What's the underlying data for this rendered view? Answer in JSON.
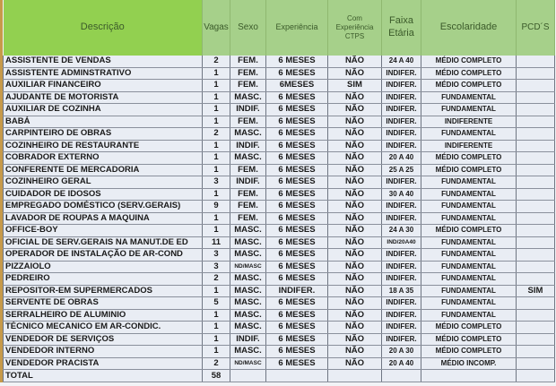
{
  "headers": {
    "descricao": "Descrição",
    "vagas": "Vagas",
    "sexo": "Sexo",
    "experiencia": "Experiência",
    "ctps": "Com Experiência CTPS",
    "faixa": "Faixa Etária",
    "escolaridade": "Escolaridade",
    "pcd": "PCD´S"
  },
  "rows": [
    [
      "ASSISTENTE DE VENDAS",
      "2",
      "FEM.",
      "6 MESES",
      "NÃO",
      "24 A 40",
      "MÉDIO COMPLETO",
      ""
    ],
    [
      "ASSISTENTE ADMINSTRATIVO",
      "1",
      "FEM.",
      "6 MESES",
      "NÃO",
      "INDIFER.",
      "MÉDIO COMPLETO",
      ""
    ],
    [
      "AUXILIAR FINANCEIRO",
      "1",
      "FEM.",
      "6MESES",
      "SIM",
      "INDIFER.",
      "MÉDIO COMPLETO",
      ""
    ],
    [
      "AJUDANTE DE MOTORISTA",
      "1",
      "MASC.",
      "6 MESES",
      "NÃO",
      "INDIFER.",
      "FUNDAMENTAL",
      ""
    ],
    [
      "AUXILIAR DE COZINHA",
      "1",
      "INDIF.",
      "6 MESES",
      "NÃO",
      "INDIFER.",
      "FUNDAMENTAL",
      ""
    ],
    [
      "BABÁ",
      "1",
      "FEM.",
      "6 MESES",
      "NÃO",
      "INDIFER.",
      "INDIFERENTE",
      ""
    ],
    [
      "CARPINTEIRO DE OBRAS",
      "2",
      "MASC.",
      "6 MESES",
      "NÃO",
      "INDIFER.",
      "FUNDAMENTAL",
      ""
    ],
    [
      "COZINHEIRO DE RESTAURANTE",
      "1",
      "INDIF.",
      "6 MESES",
      "NÃO",
      "INDIFER.",
      "INDIFERENTE",
      ""
    ],
    [
      "COBRADOR EXTERNO",
      "1",
      "MASC.",
      "6 MESES",
      "NÃO",
      "20 A 40",
      "MÉDIO COMPLETO",
      ""
    ],
    [
      "CONFERENTE DE MERCADORIA",
      "1",
      "FEM.",
      "6 MESES",
      "NÃO",
      "25 A 25",
      "MÉDIO COMPLETO",
      ""
    ],
    [
      "COZINHEIRO GERAL",
      "3",
      "INDIF.",
      "6 MESES",
      "NÃO",
      "INDIFER.",
      "FUNDAMENTAL",
      ""
    ],
    [
      "CUIDADOR DE IDOSOS",
      "1",
      "FEM.",
      "6 MESES",
      "NÃO",
      "30 A 40",
      "FUNDAMENTAL",
      ""
    ],
    [
      "EMPREGADO DOMÉSTICO (SERV.GERAIS)",
      "9",
      "FEM.",
      "6 MESES",
      "NÃO",
      "INDIFER.",
      "FUNDAMENTAL",
      ""
    ],
    [
      "LAVADOR DE ROUPAS A MAQUINA",
      "1",
      "FEM.",
      "6 MESES",
      "NÃO",
      "INDIFER.",
      "FUNDAMENTAL",
      ""
    ],
    [
      "OFFICE-BOY",
      "1",
      "MASC.",
      "6 MESES",
      "NÃO",
      "24 A 30",
      "MÉDIO COMPLETO",
      ""
    ],
    [
      "OFICIAL DE SERV.GERAIS NA MANUT.DE ED",
      "11",
      "MASC.",
      "6 MESES",
      "NÃO",
      "IND/20A40",
      "FUNDAMENTAL",
      ""
    ],
    [
      "OPERADOR DE INSTALAÇÃO DE AR-COND",
      "3",
      "MASC.",
      "6 MESES",
      "NÃO",
      "INDIFER.",
      "FUNDAMENTAL",
      ""
    ],
    [
      "PIZZAIOLO",
      "3",
      "ND/MASC",
      "6 MESES",
      "NÃO",
      "INDIFER.",
      "FUNDAMENTAL",
      ""
    ],
    [
      "PEDREIRO",
      "2",
      "MASC.",
      "6 MESES",
      "NÃO",
      "INDIFER.",
      "FUNDAMENTAL",
      ""
    ],
    [
      "REPOSITOR-EM SUPERMERCADOS",
      "1",
      "MASC.",
      "INDIFER.",
      "NÃO",
      "18 A 35",
      "FUNDAMENTAL",
      "SIM"
    ],
    [
      "SERVENTE DE OBRAS",
      "5",
      "MASC.",
      "6 MESES",
      "NÃO",
      "INDIFER.",
      "FUNDAMENTAL",
      ""
    ],
    [
      "SERRALHEIRO DE ALUMINIO",
      "1",
      "MASC.",
      "6 MESES",
      "NÃO",
      "INDIFER.",
      "FUNDAMENTAL",
      ""
    ],
    [
      "TÉCNICO MECANICO EM AR-CONDIC.",
      "1",
      "MASC.",
      "6 MESES",
      "NÃO",
      "INDIFER.",
      "MÉDIO COMPLETO",
      ""
    ],
    [
      "VENDEDOR DE SERVIÇOS",
      "1",
      "INDIF.",
      "6 MESES",
      "NÃO",
      "INDIFER.",
      "MÉDIO COMPLETO",
      ""
    ],
    [
      "VENDEDOR INTERNO",
      "1",
      "MASC.",
      "6 MESES",
      "NÃO",
      "20 A 30",
      "MÉDIO COMPLETO",
      ""
    ],
    [
      "VENDEDOR PRACISTA",
      "2",
      "ND/MASC",
      "6 MESES",
      "NÃO",
      "20 A 40",
      "MÉDIO INCOMP.",
      ""
    ]
  ],
  "total": {
    "label": "TOTAL",
    "value": "58"
  }
}
